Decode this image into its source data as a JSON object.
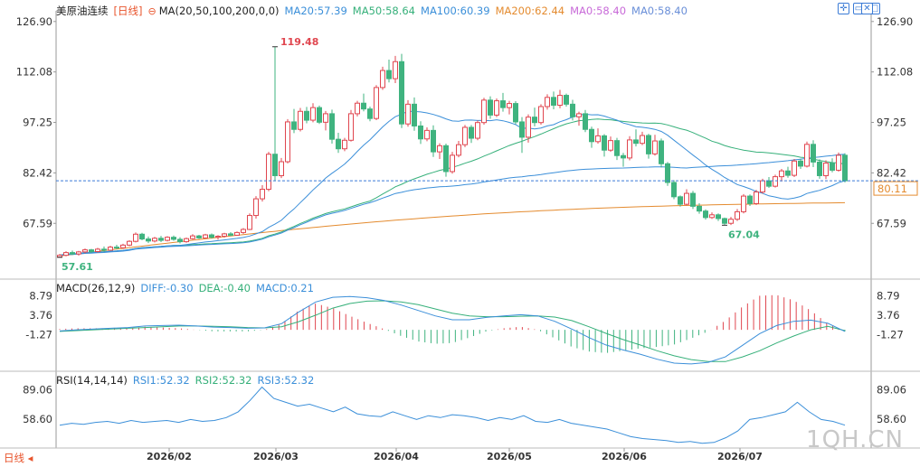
{
  "header": {
    "symbol": "美原油连续",
    "period": "[日线]",
    "ma_label": "MA(20,50,100,200,0,0)",
    "ma_values": [
      {
        "label": "MA20:57.39",
        "color": "#3b8fd9"
      },
      {
        "label": "MA50:58.64",
        "color": "#36b07a"
      },
      {
        "label": "MA100:60.39",
        "color": "#3b8fd9"
      },
      {
        "label": "MA200:62.44",
        "color": "#e48b2f"
      },
      {
        "label": "MA0:58.40",
        "color": "#c86ad8"
      },
      {
        "label": "MA0:58.40",
        "color": "#6a8fd8"
      }
    ]
  },
  "macd_header": {
    "label": "MACD(26,12,9)",
    "items": [
      {
        "label": "DIFF:-0.30",
        "color": "#3b8fd9"
      },
      {
        "label": "DEA:-0.40",
        "color": "#36b07a"
      },
      {
        "label": "MACD:0.21",
        "color": "#3b8fd9"
      }
    ]
  },
  "rsi_header": {
    "label": "RSI(14,14,14)",
    "items": [
      {
        "label": "RSI1:52.32",
        "color": "#3b8fd9"
      },
      {
        "label": "RSI2:52.32",
        "color": "#36b07a"
      },
      {
        "label": "RSI3:52.32",
        "color": "#3b8fd9"
      }
    ]
  },
  "period_button": "日线",
  "watermark": "1QH.CN",
  "icons": [
    "crosshair-icon",
    "restore-icon",
    "maximize-icon",
    "close-icon"
  ],
  "colors": {
    "up": "#e0464f",
    "down": "#3fb37f",
    "ma_short": "#3b8fd9",
    "ma_long": "#36b07a",
    "ma200": "#e48b2f",
    "price_line": "#3b7bd6",
    "text_axis": "#333333"
  },
  "chart_data": [
    {
      "type": "candlestick",
      "title": "美原油连续 [日线]",
      "x_ticks": [
        "2026/02",
        "2026/03",
        "2026/04",
        "2026/05",
        "2026/06",
        "2026/07"
      ],
      "y_ticks": [
        126.9,
        112.08,
        97.25,
        82.42,
        67.59
      ],
      "ylim": [
        52,
        129.5
      ],
      "current_price": 80.11,
      "annotations": [
        {
          "text": "119.48",
          "value": 119.48,
          "kind": "high"
        },
        {
          "text": "57.61",
          "value": 57.61,
          "kind": "low"
        },
        {
          "text": "67.04",
          "value": 67.04,
          "kind": "low"
        }
      ],
      "candles_note": "approximate daily OHLC read from the chart",
      "candles": [
        [
          57.7,
          58.6,
          57.6,
          58.2
        ],
        [
          58.2,
          59.4,
          57.9,
          59.0
        ],
        [
          59.0,
          59.6,
          58.3,
          58.6
        ],
        [
          58.6,
          59.5,
          58.1,
          59.2
        ],
        [
          59.2,
          60.2,
          58.8,
          59.8
        ],
        [
          59.8,
          60.1,
          58.9,
          59.3
        ],
        [
          59.3,
          60.4,
          59.0,
          60.0
        ],
        [
          60.0,
          60.8,
          59.2,
          59.7
        ],
        [
          59.7,
          61.0,
          59.5,
          60.6
        ],
        [
          60.6,
          61.3,
          60.0,
          60.4
        ],
        [
          60.4,
          61.6,
          60.1,
          61.2
        ],
        [
          61.2,
          62.6,
          60.9,
          62.3
        ],
        [
          62.3,
          64.9,
          62.0,
          64.4
        ],
        [
          64.4,
          64.8,
          62.6,
          63.0
        ],
        [
          63.0,
          63.7,
          61.8,
          62.4
        ],
        [
          62.4,
          63.6,
          62.0,
          63.2
        ],
        [
          63.2,
          63.9,
          62.1,
          62.6
        ],
        [
          62.6,
          63.8,
          62.3,
          63.5
        ],
        [
          63.5,
          64.0,
          62.5,
          62.9
        ],
        [
          62.9,
          63.5,
          61.7,
          62.2
        ],
        [
          62.2,
          63.4,
          61.9,
          63.1
        ],
        [
          63.1,
          64.4,
          62.8,
          63.9
        ],
        [
          63.9,
          64.2,
          63.0,
          63.3
        ],
        [
          63.3,
          64.5,
          63.1,
          64.2
        ],
        [
          64.2,
          64.6,
          63.1,
          63.5
        ],
        [
          63.5,
          64.1,
          62.8,
          63.8
        ],
        [
          63.8,
          64.8,
          63.4,
          64.5
        ],
        [
          64.5,
          65.0,
          63.8,
          64.1
        ],
        [
          64.1,
          65.2,
          63.9,
          64.9
        ],
        [
          64.9,
          66.2,
          64.5,
          65.8
        ],
        [
          65.8,
          70.5,
          65.6,
          69.9
        ],
        [
          69.9,
          75.6,
          69.0,
          74.8
        ],
        [
          74.8,
          78.8,
          74.0,
          77.6
        ],
        [
          77.6,
          88.6,
          77.0,
          87.9
        ],
        [
          87.9,
          119.48,
          80.1,
          81.6
        ],
        [
          81.6,
          86.8,
          80.9,
          85.7
        ],
        [
          85.7,
          98.2,
          85.2,
          97.4
        ],
        [
          97.4,
          101.2,
          94.1,
          95.2
        ],
        [
          95.2,
          101.5,
          94.6,
          100.5
        ],
        [
          100.5,
          101.8,
          97.0,
          97.9
        ],
        [
          97.9,
          102.9,
          97.3,
          101.6
        ],
        [
          101.6,
          102.2,
          96.8,
          97.3
        ],
        [
          97.3,
          100.6,
          94.9,
          99.8
        ],
        [
          99.8,
          101.0,
          91.0,
          92.3
        ],
        [
          92.3,
          94.2,
          88.3,
          89.5
        ],
        [
          89.5,
          92.7,
          88.8,
          92.0
        ],
        [
          92.0,
          100.9,
          91.6,
          99.8
        ],
        [
          99.8,
          103.6,
          99.0,
          102.9
        ],
        [
          102.9,
          105.7,
          100.5,
          101.2
        ],
        [
          101.2,
          101.9,
          97.6,
          98.4
        ],
        [
          98.4,
          108.2,
          97.9,
          107.5
        ],
        [
          107.5,
          113.6,
          106.8,
          112.5
        ],
        [
          112.5,
          115.7,
          109.0,
          110.1
        ],
        [
          110.1,
          116.8,
          108.8,
          115.1
        ],
        [
          115.1,
          117.4,
          95.6,
          96.8
        ],
        [
          96.8,
          103.8,
          96.0,
          102.6
        ],
        [
          102.6,
          104.6,
          94.8,
          96.2
        ],
        [
          96.2,
          97.6,
          90.9,
          92.4
        ],
        [
          92.4,
          95.8,
          91.7,
          94.9
        ],
        [
          94.9,
          96.4,
          87.1,
          88.6
        ],
        [
          88.6,
          91.1,
          86.5,
          90.4
        ],
        [
          90.4,
          91.0,
          81.3,
          82.8
        ],
        [
          82.8,
          88.6,
          82.2,
          87.6
        ],
        [
          87.6,
          91.8,
          87.0,
          90.7
        ],
        [
          90.7,
          96.5,
          90.0,
          95.8
        ],
        [
          95.8,
          96.5,
          91.2,
          92.6
        ],
        [
          92.6,
          97.8,
          92.0,
          97.2
        ],
        [
          97.2,
          104.5,
          96.6,
          103.8
        ],
        [
          103.8,
          104.9,
          98.3,
          99.4
        ],
        [
          99.4,
          104.3,
          98.8,
          103.6
        ],
        [
          103.6,
          105.9,
          100.4,
          101.6
        ],
        [
          101.6,
          103.6,
          99.6,
          102.8
        ],
        [
          102.8,
          103.5,
          96.7,
          97.4
        ],
        [
          97.4,
          98.8,
          88.3,
          92.9
        ],
        [
          92.9,
          99.6,
          91.3,
          98.8
        ],
        [
          98.8,
          101.6,
          96.1,
          97.2
        ],
        [
          97.2,
          102.6,
          96.6,
          101.9
        ],
        [
          101.9,
          105.5,
          101.0,
          104.6
        ],
        [
          104.6,
          106.3,
          101.1,
          102.3
        ],
        [
          102.3,
          106.8,
          101.4,
          105.2
        ],
        [
          105.2,
          105.7,
          101.9,
          102.6
        ],
        [
          102.6,
          103.9,
          97.8,
          98.9
        ],
        [
          98.9,
          100.4,
          96.3,
          99.8
        ],
        [
          99.8,
          100.9,
          94.4,
          95.2
        ],
        [
          95.2,
          96.0,
          89.8,
          91.6
        ],
        [
          91.6,
          95.5,
          91.0,
          93.3
        ],
        [
          93.3,
          93.8,
          87.2,
          89.1
        ],
        [
          89.1,
          93.1,
          88.6,
          91.9
        ],
        [
          91.9,
          92.7,
          86.2,
          87.5
        ],
        [
          87.5,
          88.3,
          84.2,
          86.8
        ],
        [
          86.8,
          93.2,
          86.1,
          92.1
        ],
        [
          92.1,
          95.2,
          90.2,
          91.1
        ],
        [
          91.1,
          94.5,
          90.6,
          93.4
        ],
        [
          93.4,
          93.9,
          86.6,
          88.0
        ],
        [
          88.0,
          93.6,
          87.5,
          91.8
        ],
        [
          91.8,
          92.5,
          84.0,
          85.1
        ],
        [
          85.1,
          85.6,
          78.6,
          79.6
        ],
        [
          79.6,
          80.3,
          74.7,
          75.4
        ],
        [
          75.4,
          75.8,
          72.5,
          73.2
        ],
        [
          73.2,
          77.6,
          72.8,
          76.4
        ],
        [
          76.4,
          77.1,
          71.8,
          72.6
        ],
        [
          72.6,
          73.5,
          70.4,
          71.2
        ],
        [
          71.2,
          71.7,
          68.7,
          69.3
        ],
        [
          69.3,
          70.8,
          68.9,
          70.1
        ],
        [
          70.1,
          70.5,
          68.3,
          69.0
        ],
        [
          69.0,
          69.3,
          67.0,
          67.6
        ],
        [
          67.6,
          69.5,
          67.1,
          68.8
        ],
        [
          68.8,
          71.8,
          68.3,
          71.0
        ],
        [
          71.0,
          76.2,
          70.5,
          75.6
        ],
        [
          75.6,
          76.1,
          72.7,
          73.4
        ],
        [
          73.4,
          77.4,
          73.0,
          76.8
        ],
        [
          76.8,
          80.7,
          76.3,
          80.1
        ],
        [
          80.1,
          81.2,
          78.0,
          78.5
        ],
        [
          78.5,
          81.9,
          78.1,
          81.3
        ],
        [
          81.3,
          83.6,
          79.9,
          83.0
        ],
        [
          83.0,
          84.2,
          81.0,
          81.7
        ],
        [
          81.7,
          86.5,
          81.2,
          85.9
        ],
        [
          85.9,
          86.6,
          83.6,
          84.4
        ],
        [
          84.4,
          91.6,
          84.0,
          90.8
        ],
        [
          90.8,
          92.0,
          84.1,
          85.6
        ],
        [
          85.6,
          86.4,
          80.7,
          81.6
        ],
        [
          81.6,
          86.1,
          80.6,
          85.3
        ],
        [
          85.3,
          86.7,
          82.6,
          83.2
        ],
        [
          83.2,
          88.4,
          82.8,
          87.6
        ],
        [
          87.6,
          88.2,
          79.6,
          80.1
        ]
      ]
    },
    {
      "type": "macd",
      "title": "MACD(26,12,9)",
      "y_ticks": [
        8.79,
        3.76,
        -1.27
      ],
      "ylim": [
        -10,
        11
      ],
      "values_note": "approximate curves read from the chart, sampled evenly across the date range",
      "diff": [
        -0.3,
        0.0,
        0.2,
        0.4,
        0.6,
        1.0,
        1.1,
        1.2,
        1.0,
        0.7,
        0.6,
        0.4,
        0.5,
        1.6,
        4.6,
        7.2,
        8.4,
        8.6,
        8.3,
        7.6,
        6.4,
        5.0,
        3.6,
        2.6,
        2.6,
        3.2,
        3.6,
        3.9,
        3.6,
        2.2,
        0.2,
        -2.0,
        -3.9,
        -5.2,
        -6.3,
        -7.6,
        -8.6,
        -8.8,
        -8.4,
        -7.0,
        -4.0,
        -1.0,
        1.1,
        2.2,
        2.5,
        1.7,
        -0.4
      ],
      "dea": [
        -0.4,
        -0.2,
        0.0,
        0.2,
        0.4,
        0.6,
        0.8,
        1.0,
        1.0,
        0.9,
        0.8,
        0.6,
        0.5,
        0.8,
        2.1,
        3.8,
        5.6,
        6.8,
        7.4,
        7.5,
        7.2,
        6.5,
        5.4,
        4.3,
        3.6,
        3.4,
        3.4,
        3.5,
        3.6,
        3.3,
        2.4,
        0.8,
        -0.9,
        -2.5,
        -3.9,
        -5.4,
        -6.7,
        -7.7,
        -8.2,
        -8.2,
        -7.0,
        -5.4,
        -3.4,
        -1.6,
        0.0,
        0.9,
        -0.2
      ],
      "macd": [
        0.21,
        0.4,
        0.4,
        0.4,
        0.4,
        0.8,
        0.6,
        0.4,
        0.0,
        -0.4,
        -0.4,
        -0.4,
        0.0,
        1.6,
        5.0,
        6.8,
        5.6,
        3.6,
        1.8,
        0.2,
        -1.6,
        -3.0,
        -3.6,
        -3.4,
        -2.0,
        -0.4,
        0.4,
        0.8,
        0.0,
        -2.2,
        -4.4,
        -5.6,
        -6.0,
        -5.4,
        -4.8,
        -4.4,
        -3.8,
        -2.2,
        -0.4,
        2.4,
        6.0,
        8.8,
        9.0,
        7.6,
        5.0,
        1.6,
        -0.4
      ]
    },
    {
      "type": "line",
      "title": "RSI(14,14,14)",
      "y_ticks": [
        89.06,
        58.6
      ],
      "ylim": [
        30,
        100
      ],
      "values_note": "approximate RSI curve read from the chart, sampled evenly across the date range",
      "rsi": [
        52,
        54,
        53,
        55,
        56,
        54,
        57,
        55,
        56,
        57,
        55,
        58,
        56,
        57,
        60,
        66,
        78,
        92,
        80,
        76,
        72,
        74,
        70,
        66,
        71,
        64,
        62,
        61,
        66,
        62,
        58,
        62,
        60,
        63,
        62,
        60,
        57,
        60,
        58,
        62,
        56,
        55,
        58,
        54,
        52,
        50,
        48,
        44,
        40,
        38,
        37,
        36,
        34,
        35,
        33,
        34,
        39,
        46,
        58,
        60,
        63,
        66,
        76,
        66,
        58,
        56,
        52
      ]
    }
  ]
}
